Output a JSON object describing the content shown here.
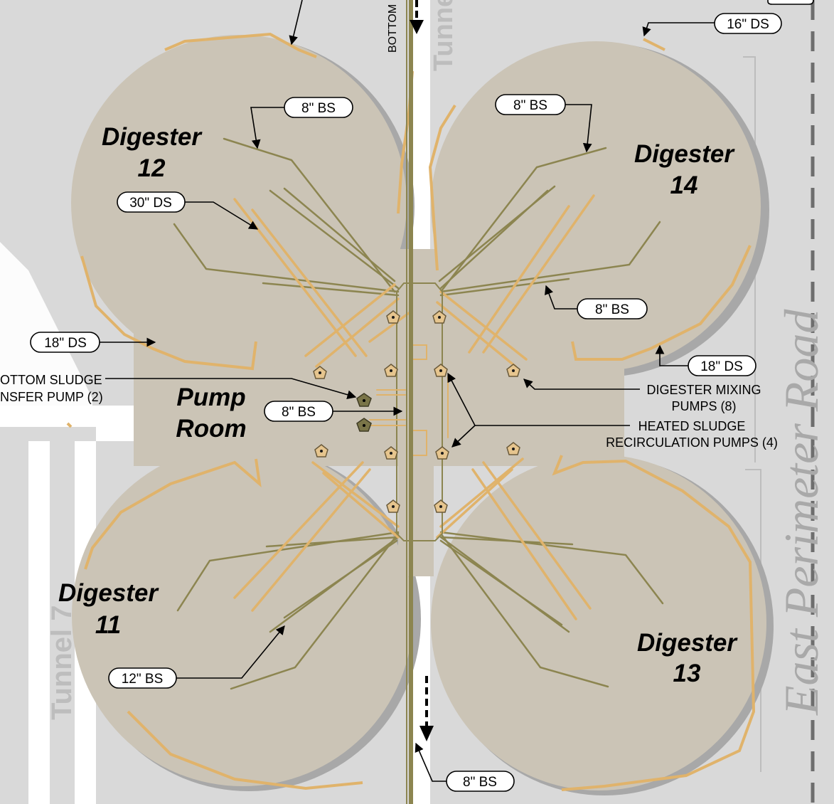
{
  "labels": {
    "digester_12": [
      "Digester",
      "12"
    ],
    "digester_14": [
      "Digester",
      "14"
    ],
    "digester_11": [
      "Digester",
      "11"
    ],
    "digester_13": [
      "Digester",
      "13"
    ],
    "pump_room": [
      "Pump",
      "Room"
    ],
    "bottom_sludge_pump": [
      "OTTOM SLUDGE",
      "NSFER PUMP (2)"
    ],
    "mixing_pumps": [
      "DIGESTER MIXING",
      "PUMPS (8)"
    ],
    "recirc_pumps": [
      "HEATED  SLUDGE",
      "RECIRCULATION PUMPS (4)"
    ],
    "east_perimeter_road": "East Perimeter Road",
    "tunnel_7": "Tunnel 7",
    "tunnel_top": "Tunne",
    "bottom_text": "BOTTOM"
  },
  "callouts": {
    "ds_16": "16\" DS",
    "bs_8_d12": "8\" BS",
    "bs_8_d14": "8\" BS",
    "ds_30": "30\" DS",
    "bs_8_right": "8\" BS",
    "ds_18_left": "18\" DS",
    "ds_18_right": "18\" DS",
    "bs_8_center": "8\" BS",
    "bs_12": "12\" BS",
    "bs_8_bottom": "8\" BS"
  },
  "colors": {
    "background": "#d9d9d9",
    "digester_fill": "#cbc4b6",
    "orange_outline": "#e0b36b",
    "olive_pipe": "#8c8550",
    "road_white": "#ffffff",
    "dashed_line": "#6e6e6e"
  }
}
